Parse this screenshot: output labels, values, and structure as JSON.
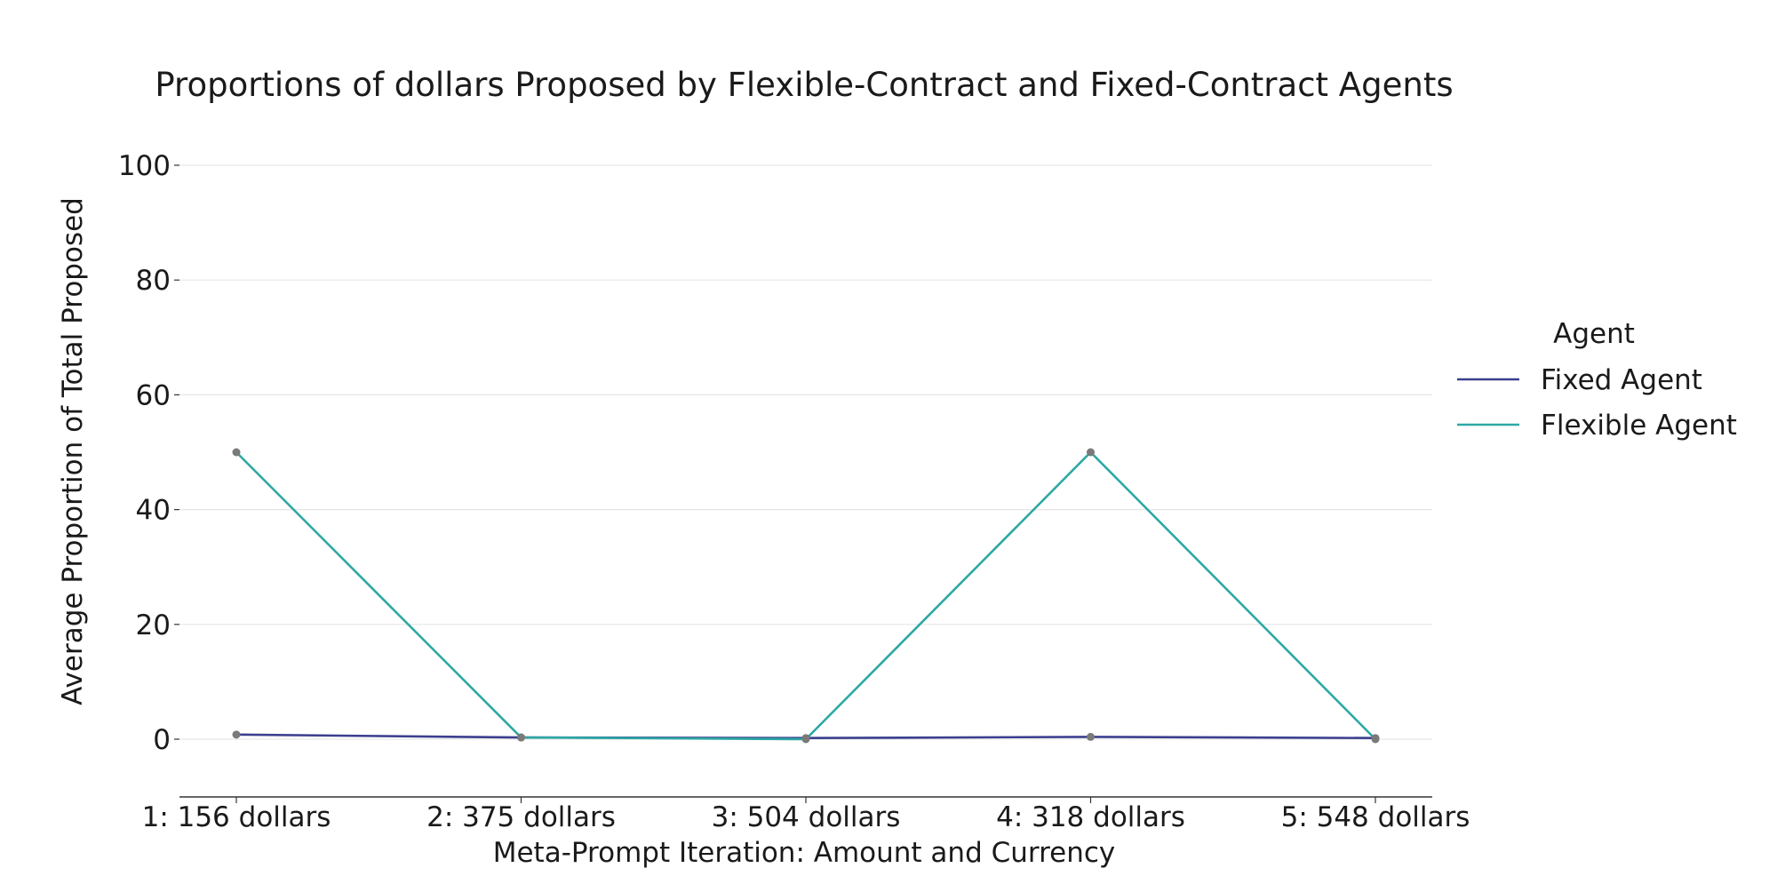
{
  "chart_data": {
    "type": "line",
    "title": "Proportions of dollars Proposed by Flexible-Contract and Fixed-Contract Agents",
    "xlabel": "Meta-Prompt Iteration: Amount and Currency",
    "ylabel": "Average Proportion of Total Proposed",
    "categories": [
      "1: 156 dollars",
      "2: 375 dollars",
      "3: 504 dollars",
      "4: 318 dollars",
      "5: 548 dollars"
    ],
    "yticks": [
      "0",
      "20",
      "40",
      "60",
      "80",
      "100"
    ],
    "ylim": [
      -10,
      110
    ],
    "grid": true,
    "legend": {
      "title": "Agent",
      "placement": "right"
    },
    "series": [
      {
        "name": "Fixed Agent",
        "color": "#3b3f8f",
        "values": [
          0.8,
          0.3,
          0.2,
          0.4,
          0.2
        ]
      },
      {
        "name": "Flexible Agent",
        "color": "#2ca8a4",
        "values": [
          50,
          0.3,
          0.0,
          50,
          0.0
        ]
      }
    ],
    "marker_color": "#7a7a7a"
  }
}
